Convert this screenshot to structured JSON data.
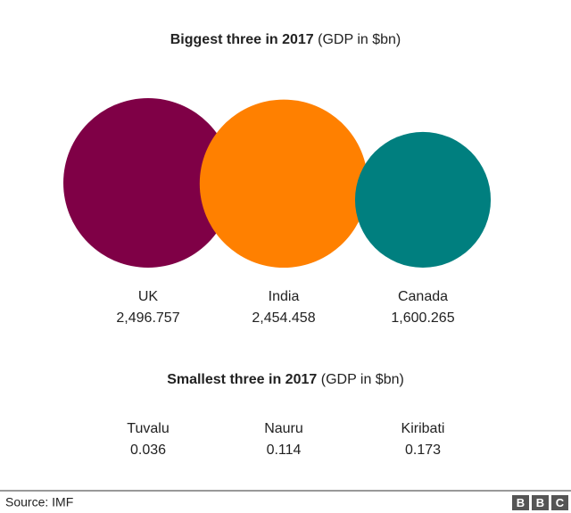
{
  "chart_data": [
    {
      "type": "bubble",
      "title": "Biggest three in 2017",
      "subtitle": "(GDP in $bn)",
      "categories": [
        "UK",
        "India",
        "Canada"
      ],
      "values": [
        2496.757,
        2454.458,
        1600.265
      ],
      "value_labels": [
        "2,496.757",
        "2,454.458",
        "1,600.265"
      ],
      "colors": [
        "#7f0046",
        "#ff8000",
        "#007f7f"
      ]
    },
    {
      "type": "bubble",
      "title": "Smallest three in 2017",
      "subtitle": "(GDP in $bn)",
      "categories": [
        "Tuvalu",
        "Nauru",
        "Kiribati"
      ],
      "values": [
        0.036,
        0.114,
        0.173
      ]
    }
  ],
  "footer": {
    "source": "Source: IMF",
    "logo": [
      "B",
      "B",
      "C"
    ]
  }
}
